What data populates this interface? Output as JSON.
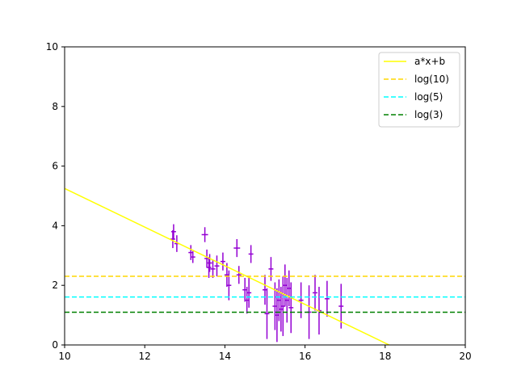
{
  "chart_data": {
    "type": "scatter",
    "title": "",
    "xlabel": "",
    "ylabel": "",
    "xlim": [
      10,
      20
    ],
    "ylim": [
      0,
      10
    ],
    "xticks": [
      "10",
      "12",
      "14",
      "16",
      "18",
      "20"
    ],
    "yticks": [
      "0",
      "2",
      "4",
      "6",
      "8",
      "10"
    ],
    "grid": false,
    "legend_position": "top-right",
    "series": [
      {
        "kind": "errorbar",
        "color": "#9400D3",
        "points": [
          {
            "x": 12.7,
            "y": 3.55,
            "xerr": 0.06,
            "yerr": 0.3
          },
          {
            "x": 12.72,
            "y": 3.8,
            "xerr": 0.06,
            "yerr": 0.25
          },
          {
            "x": 12.8,
            "y": 3.4,
            "xerr": 0.06,
            "yerr": 0.28
          },
          {
            "x": 13.15,
            "y": 3.1,
            "xerr": 0.06,
            "yerr": 0.25
          },
          {
            "x": 13.2,
            "y": 2.95,
            "xerr": 0.06,
            "yerr": 0.2
          },
          {
            "x": 13.5,
            "y": 3.7,
            "xerr": 0.08,
            "yerr": 0.25
          },
          {
            "x": 13.55,
            "y": 2.9,
            "xerr": 0.06,
            "yerr": 0.3
          },
          {
            "x": 13.6,
            "y": 2.6,
            "xerr": 0.06,
            "yerr": 0.35
          },
          {
            "x": 13.62,
            "y": 2.75,
            "xerr": 0.06,
            "yerr": 0.3
          },
          {
            "x": 13.7,
            "y": 2.55,
            "xerr": 0.06,
            "yerr": 0.3
          },
          {
            "x": 13.8,
            "y": 2.65,
            "xerr": 0.06,
            "yerr": 0.35
          },
          {
            "x": 13.95,
            "y": 2.8,
            "xerr": 0.06,
            "yerr": 0.3
          },
          {
            "x": 14.05,
            "y": 2.35,
            "xerr": 0.06,
            "yerr": 0.4
          },
          {
            "x": 14.1,
            "y": 2.0,
            "xerr": 0.06,
            "yerr": 0.5
          },
          {
            "x": 14.3,
            "y": 3.25,
            "xerr": 0.08,
            "yerr": 0.3
          },
          {
            "x": 14.35,
            "y": 2.35,
            "xerr": 0.06,
            "yerr": 0.3
          },
          {
            "x": 14.5,
            "y": 1.85,
            "xerr": 0.06,
            "yerr": 0.4
          },
          {
            "x": 14.55,
            "y": 1.5,
            "xerr": 0.06,
            "yerr": 0.45
          },
          {
            "x": 14.6,
            "y": 1.75,
            "xerr": 0.06,
            "yerr": 0.5
          },
          {
            "x": 14.65,
            "y": 3.05,
            "xerr": 0.06,
            "yerr": 0.3
          },
          {
            "x": 15.0,
            "y": 1.85,
            "xerr": 0.06,
            "yerr": 0.5
          },
          {
            "x": 15.05,
            "y": 1.05,
            "xerr": 0.06,
            "yerr": 0.85
          },
          {
            "x": 15.15,
            "y": 2.55,
            "xerr": 0.06,
            "yerr": 0.4
          },
          {
            "x": 15.25,
            "y": 1.3,
            "xerr": 0.06,
            "yerr": 0.8
          },
          {
            "x": 15.3,
            "y": 1.0,
            "xerr": 0.06,
            "yerr": 0.9
          },
          {
            "x": 15.35,
            "y": 1.5,
            "xerr": 0.06,
            "yerr": 0.7
          },
          {
            "x": 15.4,
            "y": 1.2,
            "xerr": 0.06,
            "yerr": 0.75
          },
          {
            "x": 15.45,
            "y": 1.3,
            "xerr": 0.06,
            "yerr": 1.0
          },
          {
            "x": 15.5,
            "y": 2.0,
            "xerr": 0.06,
            "yerr": 0.7
          },
          {
            "x": 15.55,
            "y": 1.5,
            "xerr": 0.06,
            "yerr": 0.75
          },
          {
            "x": 15.6,
            "y": 1.9,
            "xerr": 0.06,
            "yerr": 0.6
          },
          {
            "x": 15.65,
            "y": 1.25,
            "xerr": 0.06,
            "yerr": 0.85
          },
          {
            "x": 15.9,
            "y": 1.5,
            "xerr": 0.06,
            "yerr": 0.6
          },
          {
            "x": 16.1,
            "y": 1.1,
            "xerr": 0.06,
            "yerr": 0.9
          },
          {
            "x": 16.25,
            "y": 1.75,
            "xerr": 0.06,
            "yerr": 0.6
          },
          {
            "x": 16.35,
            "y": 1.15,
            "xerr": 0.06,
            "yerr": 0.8
          },
          {
            "x": 16.55,
            "y": 1.55,
            "xerr": 0.06,
            "yerr": 0.6
          },
          {
            "x": 16.9,
            "y": 1.3,
            "xerr": 0.06,
            "yerr": 0.75
          }
        ]
      },
      {
        "name": "a*x+b",
        "kind": "line",
        "color": "#ffff00",
        "style": "solid",
        "x": [
          10,
          18.1
        ],
        "y": [
          5.25,
          0
        ]
      },
      {
        "name": "log(10)",
        "kind": "hline",
        "color": "#ffd700",
        "style": "dashed",
        "y": 2.302585
      },
      {
        "name": "log(5)",
        "kind": "hline",
        "color": "#00ffff",
        "style": "dashed",
        "y": 1.609438
      },
      {
        "name": "log(3)",
        "kind": "hline",
        "color": "#008000",
        "style": "dashed",
        "y": 1.098612
      }
    ]
  }
}
